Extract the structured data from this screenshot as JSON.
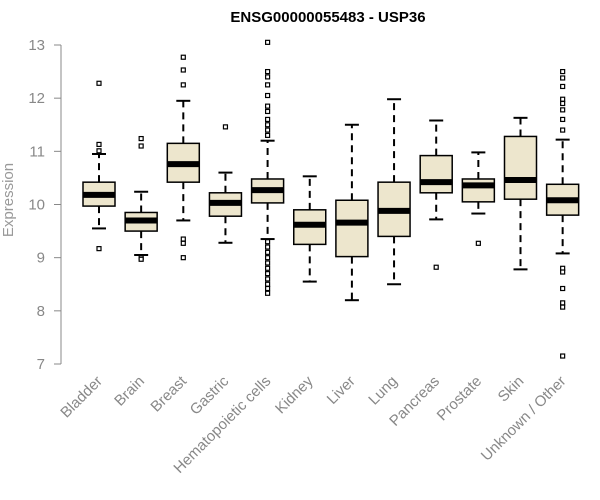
{
  "chart_data": {
    "type": "boxplot",
    "title": "ENSG00000055483 - USP36",
    "xlabel": "",
    "ylabel": "Expression",
    "ylim": [
      7,
      13
    ],
    "yticks": [
      7,
      8,
      9,
      10,
      11,
      12,
      13
    ],
    "categories": [
      "Bladder",
      "Brain",
      "Breast",
      "Gastric",
      "Hematopoietic cells",
      "Kidney",
      "Liver",
      "Lung",
      "Pancreas",
      "Prostate",
      "Skin",
      "Unknown / Other"
    ],
    "boxes": [
      {
        "name": "Bladder",
        "whisker_low": 9.55,
        "q1": 9.97,
        "median": 10.18,
        "q3": 10.42,
        "whisker_high": 10.95,
        "outliers": [
          12.28,
          11.13,
          11.01,
          9.17
        ]
      },
      {
        "name": "Brain",
        "whisker_low": 9.05,
        "q1": 9.5,
        "median": 9.7,
        "q3": 9.85,
        "whisker_high": 10.24,
        "outliers": [
          11.24,
          11.1,
          9.0,
          8.97
        ]
      },
      {
        "name": "Breast",
        "whisker_low": 9.7,
        "q1": 10.42,
        "median": 10.76,
        "q3": 11.15,
        "whisker_high": 11.95,
        "outliers": [
          12.77,
          12.53,
          12.25,
          9.35,
          9.27,
          9.0
        ]
      },
      {
        "name": "Gastric",
        "whisker_low": 9.28,
        "q1": 9.78,
        "median": 10.03,
        "q3": 10.22,
        "whisker_high": 10.6,
        "outliers": [
          11.46
        ]
      },
      {
        "name": "Hematopoietic cells",
        "whisker_low": 9.35,
        "q1": 10.03,
        "median": 10.27,
        "q3": 10.48,
        "whisker_high": 11.2,
        "outliers": [
          13.05,
          12.5,
          12.4,
          12.25,
          12.05,
          11.85,
          11.75,
          11.6,
          11.5,
          11.4,
          11.3,
          9.3,
          9.2,
          9.1,
          9.0,
          8.9,
          8.8,
          8.7,
          8.6,
          8.5,
          8.42,
          8.33
        ]
      },
      {
        "name": "Kidney",
        "whisker_low": 8.55,
        "q1": 9.25,
        "median": 9.62,
        "q3": 9.9,
        "whisker_high": 10.53,
        "outliers": []
      },
      {
        "name": "Liver",
        "whisker_low": 8.2,
        "q1": 9.02,
        "median": 9.66,
        "q3": 10.08,
        "whisker_high": 11.5,
        "outliers": []
      },
      {
        "name": "Lung",
        "whisker_low": 8.5,
        "q1": 9.4,
        "median": 9.88,
        "q3": 10.42,
        "whisker_high": 11.98,
        "outliers": []
      },
      {
        "name": "Pancreas",
        "whisker_low": 9.72,
        "q1": 10.22,
        "median": 10.42,
        "q3": 10.92,
        "whisker_high": 11.58,
        "outliers": [
          8.82
        ]
      },
      {
        "name": "Prostate",
        "whisker_low": 9.83,
        "q1": 10.05,
        "median": 10.36,
        "q3": 10.48,
        "whisker_high": 10.98,
        "outliers": [
          9.27
        ]
      },
      {
        "name": "Skin",
        "whisker_low": 8.78,
        "q1": 10.1,
        "median": 10.46,
        "q3": 11.28,
        "whisker_high": 11.63,
        "outliers": []
      },
      {
        "name": "Unknown / Other",
        "whisker_low": 9.08,
        "q1": 9.8,
        "median": 10.08,
        "q3": 10.38,
        "whisker_high": 11.22,
        "outliers": [
          12.5,
          12.38,
          12.22,
          11.98,
          11.9,
          11.78,
          11.6,
          11.4,
          8.8,
          8.73,
          8.42,
          8.15,
          8.07,
          7.15
        ]
      }
    ],
    "colors": {
      "box_fill": "#ede6cd",
      "stroke": "#000000",
      "axis": "#888888",
      "title": "#000000"
    }
  }
}
